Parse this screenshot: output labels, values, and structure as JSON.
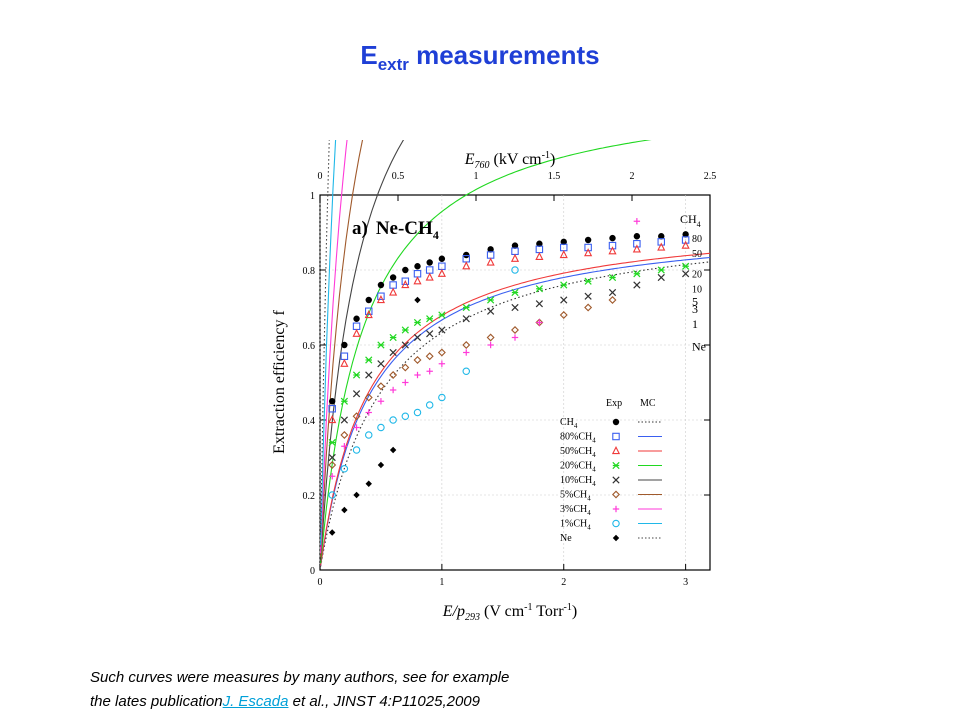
{
  "slide": {
    "title_main": "E",
    "title_sub": "extr",
    "title_rest": " measurements",
    "caption_line1": "Such curves were measures by many authors, see for example",
    "caption_line2_pre": "the lates publication",
    "caption_link": "J. Escada",
    "caption_line2_post": " et al., JINST 4:P11025,2009"
  },
  "chart_data": {
    "type": "scatter",
    "panel_label": "a)",
    "panel_title": "Ne-CH",
    "panel_title_sub": "4",
    "xlabel": "E/p",
    "xlabel_sub": "293",
    "xlabel_units": " (V cm",
    "xlabel_units_sup": "-1",
    "xlabel_units_end": " Torr",
    "xlabel_units_sup2": "-1",
    "xlabel_close": ")",
    "top_xlabel": "E",
    "top_xlabel_sub": "760",
    "top_xlabel_units": " (kV cm",
    "top_xlabel_units_sup": "-1",
    "top_xlabel_close": ")",
    "ylabel": "Extraction efficiency f",
    "xlim": [
      0,
      3.2
    ],
    "ylim": [
      0,
      1
    ],
    "top_xlim": [
      0,
      2.5
    ],
    "x_ticks": [
      "0",
      "1",
      "2",
      "3"
    ],
    "top_x_ticks": [
      "0",
      "0.5",
      "1",
      "1.5",
      "2",
      "2.5"
    ],
    "y_ticks": [
      "0",
      "0.2",
      "0.4",
      "0.6",
      "0.8",
      "1"
    ],
    "legend_header_exp": "Exp",
    "legend_header_mc": "MC",
    "series": [
      {
        "name": "CH",
        "sub": "4",
        "end_label": "CH",
        "end_sub": "4",
        "color": "#000000",
        "marker": "filled-circle",
        "mc_style": "dotted",
        "mc_color": "#333333",
        "x": [
          0.1,
          0.2,
          0.3,
          0.4,
          0.5,
          0.6,
          0.7,
          0.8,
          0.9,
          1.0,
          1.2,
          1.4,
          1.6,
          1.8,
          2.0,
          2.2,
          2.4,
          2.6,
          2.8,
          3.0
        ],
        "y": [
          0.45,
          0.6,
          0.67,
          0.72,
          0.76,
          0.78,
          0.8,
          0.81,
          0.82,
          0.83,
          0.84,
          0.855,
          0.865,
          0.87,
          0.875,
          0.88,
          0.885,
          0.89,
          0.89,
          0.895
        ],
        "mc": [
          0.5,
          0.95
        ],
        "mc_end": 0.91
      },
      {
        "name": "80%CH",
        "sub": "4",
        "end_label": "80",
        "end_sub": "",
        "color": "#3a5ff0",
        "marker": "open-square",
        "mc_style": "solid",
        "mc_color": "#3a5ff0",
        "x": [
          0.1,
          0.2,
          0.3,
          0.4,
          0.5,
          0.6,
          0.7,
          0.8,
          0.9,
          1.0,
          1.2,
          1.4,
          1.6,
          1.8,
          2.0,
          2.2,
          2.4,
          2.6,
          2.8,
          3.0
        ],
        "y": [
          0.43,
          0.57,
          0.65,
          0.69,
          0.73,
          0.76,
          0.77,
          0.79,
          0.8,
          0.81,
          0.83,
          0.84,
          0.85,
          0.855,
          0.86,
          0.86,
          0.865,
          0.87,
          0.875,
          0.88
        ],
        "mc": [
          0.41,
          0.94
        ],
        "mc_end": 0.87
      },
      {
        "name": "50%CH",
        "sub": "4",
        "end_label": "50",
        "end_sub": "",
        "color": "#f03a3a",
        "marker": "open-triangle",
        "mc_style": "solid",
        "mc_color": "#f03a3a",
        "x": [
          0.1,
          0.2,
          0.3,
          0.4,
          0.5,
          0.6,
          0.7,
          0.8,
          0.9,
          1.0,
          1.2,
          1.4,
          1.6,
          1.8,
          2.0,
          2.2,
          2.4,
          2.6,
          2.8,
          3.0
        ],
        "y": [
          0.4,
          0.55,
          0.63,
          0.68,
          0.72,
          0.74,
          0.76,
          0.77,
          0.78,
          0.79,
          0.81,
          0.82,
          0.83,
          0.835,
          0.84,
          0.845,
          0.85,
          0.855,
          0.86,
          0.865
        ],
        "mc": [
          0.4,
          0.95
        ],
        "mc_end": 0.83
      },
      {
        "name": "20%CH",
        "sub": "4",
        "end_label": "20",
        "end_sub": "",
        "color": "#20d820",
        "marker": "star",
        "mc_style": "solid",
        "mc_color": "#20d820",
        "x": [
          0.1,
          0.2,
          0.3,
          0.4,
          0.5,
          0.6,
          0.7,
          0.8,
          0.9,
          1.0,
          1.2,
          1.4,
          1.6,
          1.8,
          2.0,
          2.2,
          2.4,
          2.6,
          2.8,
          3.0
        ],
        "y": [
          0.34,
          0.45,
          0.52,
          0.56,
          0.6,
          0.62,
          0.64,
          0.66,
          0.67,
          0.68,
          0.7,
          0.72,
          0.74,
          0.75,
          0.76,
          0.77,
          0.78,
          0.79,
          0.8,
          0.81
        ],
        "mc": [
          0.36,
          1.3
        ],
        "mc_end": 0.775
      },
      {
        "name": "10%CH",
        "sub": "4",
        "end_label": "10",
        "end_sub": "",
        "color": "#333333",
        "marker": "x",
        "mc_style": "solid",
        "mc_color": "#444444",
        "x": [
          0.1,
          0.2,
          0.3,
          0.4,
          0.5,
          0.6,
          0.7,
          0.8,
          0.9,
          1.0,
          1.2,
          1.4,
          1.6,
          1.8,
          2.0,
          2.2,
          2.4,
          2.6,
          2.8,
          3.0
        ],
        "y": [
          0.3,
          0.4,
          0.47,
          0.52,
          0.55,
          0.58,
          0.6,
          0.62,
          0.63,
          0.64,
          0.67,
          0.69,
          0.7,
          0.71,
          0.72,
          0.73,
          0.74,
          0.76,
          0.78,
          0.79
        ],
        "mc": [
          0.33,
          1.7
        ],
        "mc_end": 0.735
      },
      {
        "name": "5%CH",
        "sub": "4",
        "end_label": "5",
        "end_sub": "",
        "color": "#a05a2c",
        "marker": "open-diamond",
        "mc_style": "solid",
        "mc_color": "#a05a2c",
        "x": [
          0.1,
          0.2,
          0.3,
          0.4,
          0.5,
          0.6,
          0.7,
          0.8,
          0.9,
          1.0,
          1.2,
          1.4,
          1.6,
          1.8,
          2.0,
          2.2,
          2.4
        ],
        "y": [
          0.28,
          0.36,
          0.41,
          0.46,
          0.49,
          0.52,
          0.54,
          0.56,
          0.57,
          0.58,
          0.6,
          0.62,
          0.64,
          0.66,
          0.68,
          0.7,
          0.72
        ],
        "mc": [
          0.32,
          2.2
        ],
        "mc_end": 0.7
      },
      {
        "name": "3%CH",
        "sub": "4",
        "end_label": "3",
        "end_sub": "",
        "color": "#ff3ad8",
        "marker": "plus",
        "mc_style": "solid",
        "mc_color": "#ff3ad8",
        "x": [
          0.1,
          0.2,
          0.3,
          0.4,
          0.5,
          0.6,
          0.7,
          0.8,
          0.9,
          1.0,
          1.2,
          1.4,
          1.6,
          1.8,
          2.6
        ],
        "y": [
          0.25,
          0.33,
          0.38,
          0.42,
          0.45,
          0.48,
          0.5,
          0.52,
          0.53,
          0.55,
          0.58,
          0.6,
          0.62,
          0.66,
          0.93
        ],
        "mc": [
          0.3,
          2.7
        ],
        "mc_end": 0.68
      },
      {
        "name": "1%CH",
        "sub": "4",
        "end_label": "1",
        "end_sub": "",
        "color": "#20b8e8",
        "marker": "open-circle",
        "mc_style": "solid",
        "mc_color": "#20b8e8",
        "x": [
          0.1,
          0.2,
          0.3,
          0.4,
          0.5,
          0.6,
          0.7,
          0.8,
          0.9,
          1.0,
          1.2,
          1.6
        ],
        "y": [
          0.2,
          0.27,
          0.32,
          0.36,
          0.38,
          0.4,
          0.41,
          0.42,
          0.44,
          0.46,
          0.53,
          0.8
        ],
        "mc": [
          0.25,
          3.4
        ],
        "mc_end": 0.64
      },
      {
        "name": "Ne",
        "sub": "",
        "end_label": "Ne",
        "end_sub": "",
        "color": "#000000",
        "marker": "filled-diamond",
        "mc_style": "dotted",
        "mc_color": "#444444",
        "x": [
          0.1,
          0.2,
          0.3,
          0.4,
          0.5,
          0.6,
          0.8
        ],
        "y": [
          0.1,
          0.16,
          0.2,
          0.23,
          0.28,
          0.32,
          0.72
        ],
        "mc": [
          0.22,
          4.5
        ],
        "mc_end": 0.58
      }
    ]
  }
}
